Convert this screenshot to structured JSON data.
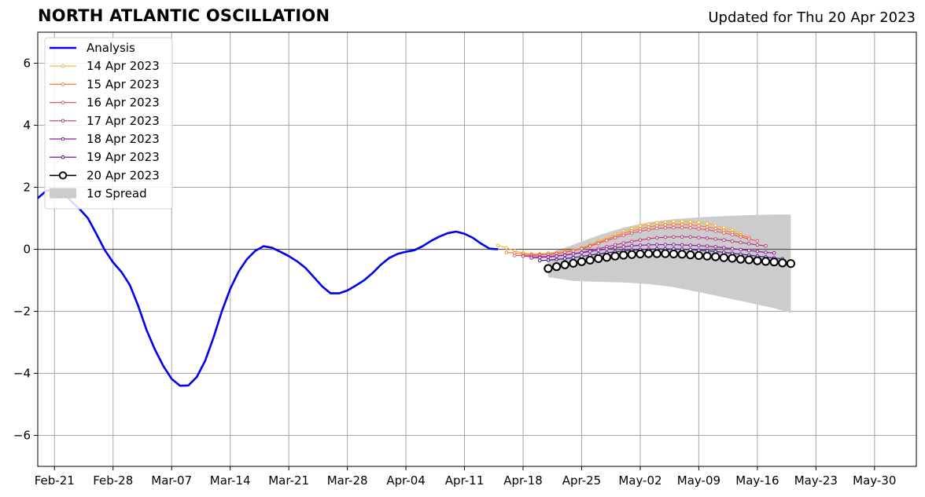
{
  "title": "NORTH ATLANTIC OSCILLATION",
  "subtitle": "Updated for Thu 20 Apr 2023",
  "chart_data": {
    "type": "line",
    "x_unit": "date",
    "xlim": [
      "2023-02-19",
      "2023-06-04"
    ],
    "ylim": [
      -7,
      7
    ],
    "x_ticks": [
      {
        "date": "2023-02-21",
        "label": "Feb-21"
      },
      {
        "date": "2023-02-28",
        "label": "Feb-28"
      },
      {
        "date": "2023-03-07",
        "label": "Mar-07"
      },
      {
        "date": "2023-03-14",
        "label": "Mar-14"
      },
      {
        "date": "2023-03-21",
        "label": "Mar-21"
      },
      {
        "date": "2023-03-28",
        "label": "Mar-28"
      },
      {
        "date": "2023-04-04",
        "label": "Apr-04"
      },
      {
        "date": "2023-04-11",
        "label": "Apr-11"
      },
      {
        "date": "2023-04-18",
        "label": "Apr-18"
      },
      {
        "date": "2023-04-25",
        "label": "Apr-25"
      },
      {
        "date": "2023-05-02",
        "label": "May-02"
      },
      {
        "date": "2023-05-09",
        "label": "May-09"
      },
      {
        "date": "2023-05-16",
        "label": "May-16"
      },
      {
        "date": "2023-05-23",
        "label": "May-23"
      },
      {
        "date": "2023-05-30",
        "label": "May-30"
      }
    ],
    "y_ticks": [
      {
        "value": 6,
        "label": "6"
      },
      {
        "value": 4,
        "label": "4"
      },
      {
        "value": 2,
        "label": "2"
      },
      {
        "value": 0,
        "label": "0"
      },
      {
        "value": -2,
        "label": "−2"
      },
      {
        "value": -4,
        "label": "−4"
      },
      {
        "value": -6,
        "label": "−6"
      }
    ],
    "grid": true,
    "legend_position": "top-left",
    "analysis": {
      "name": "Analysis",
      "color": "#0000ee",
      "x": [
        "2023-02-19",
        "2023-02-20",
        "2023-02-21",
        "2023-02-22",
        "2023-02-23",
        "2023-02-24",
        "2023-02-25",
        "2023-02-26",
        "2023-02-27",
        "2023-02-28",
        "2023-03-01",
        "2023-03-02",
        "2023-03-03",
        "2023-03-04",
        "2023-03-05",
        "2023-03-06",
        "2023-03-07",
        "2023-03-08",
        "2023-03-09",
        "2023-03-10",
        "2023-03-11",
        "2023-03-12",
        "2023-03-13",
        "2023-03-14",
        "2023-03-15",
        "2023-03-16",
        "2023-03-17",
        "2023-03-18",
        "2023-03-19",
        "2023-03-20",
        "2023-03-21",
        "2023-03-22",
        "2023-03-23",
        "2023-03-24",
        "2023-03-25",
        "2023-03-26",
        "2023-03-27",
        "2023-03-28",
        "2023-03-29",
        "2023-03-30",
        "2023-03-31",
        "2023-04-01",
        "2023-04-02",
        "2023-04-03",
        "2023-04-04",
        "2023-04-05",
        "2023-04-06",
        "2023-04-07",
        "2023-04-08",
        "2023-04-09",
        "2023-04-10",
        "2023-04-11",
        "2023-04-12",
        "2023-04-13",
        "2023-04-14",
        "2023-04-15"
      ],
      "y": [
        1.65,
        1.88,
        1.95,
        1.85,
        1.55,
        1.3,
        1.0,
        0.5,
        -0.02,
        -0.42,
        -0.73,
        -1.15,
        -1.82,
        -2.6,
        -3.23,
        -3.76,
        -4.18,
        -4.4,
        -4.39,
        -4.12,
        -3.6,
        -2.85,
        -2.0,
        -1.28,
        -0.72,
        -0.32,
        -0.05,
        0.1,
        0.05,
        -0.08,
        -0.22,
        -0.39,
        -0.6,
        -0.9,
        -1.2,
        -1.42,
        -1.42,
        -1.33,
        -1.17,
        -1.0,
        -0.77,
        -0.5,
        -0.28,
        -0.15,
        -0.08,
        -0.03,
        0.1,
        0.27,
        0.41,
        0.52,
        0.57,
        0.5,
        0.37,
        0.18,
        0.02,
        0.0
      ]
    },
    "forecasts": [
      {
        "name": "14 Apr 2023",
        "color": "#f5b53a",
        "x": [
          "2023-04-15",
          "2023-04-16",
          "2023-04-17",
          "2023-04-18",
          "2023-04-19",
          "2023-04-20",
          "2023-04-21",
          "2023-04-22",
          "2023-04-23",
          "2023-04-24",
          "2023-04-25",
          "2023-04-26",
          "2023-04-27",
          "2023-04-28",
          "2023-04-29",
          "2023-04-30",
          "2023-05-01",
          "2023-05-02",
          "2023-05-03",
          "2023-05-04",
          "2023-05-05",
          "2023-05-06",
          "2023-05-07",
          "2023-05-08",
          "2023-05-09",
          "2023-05-10",
          "2023-05-11",
          "2023-05-12",
          "2023-05-13",
          "2023-05-14"
        ],
        "y": [
          0.12,
          0.05,
          -0.05,
          -0.12,
          -0.15,
          -0.14,
          -0.12,
          -0.1,
          -0.06,
          -0.02,
          0.05,
          0.15,
          0.26,
          0.37,
          0.48,
          0.58,
          0.67,
          0.75,
          0.81,
          0.85,
          0.88,
          0.9,
          0.9,
          0.89,
          0.87,
          0.83,
          0.77,
          0.7,
          0.62,
          0.52
        ]
      },
      {
        "name": "15 Apr 2023",
        "color": "#f07f3e",
        "x": [
          "2023-04-16",
          "2023-04-17",
          "2023-04-18",
          "2023-04-19",
          "2023-04-20",
          "2023-04-21",
          "2023-04-22",
          "2023-04-23",
          "2023-04-24",
          "2023-04-25",
          "2023-04-26",
          "2023-04-27",
          "2023-04-28",
          "2023-04-29",
          "2023-04-30",
          "2023-05-01",
          "2023-05-02",
          "2023-05-03",
          "2023-05-04",
          "2023-05-05",
          "2023-05-06",
          "2023-05-07",
          "2023-05-08",
          "2023-05-09",
          "2023-05-10",
          "2023-05-11",
          "2023-05-12",
          "2023-05-13",
          "2023-05-14",
          "2023-05-15"
        ],
        "y": [
          -0.1,
          -0.12,
          -0.15,
          -0.17,
          -0.17,
          -0.16,
          -0.13,
          -0.09,
          -0.04,
          0.03,
          0.12,
          0.22,
          0.32,
          0.42,
          0.51,
          0.59,
          0.66,
          0.72,
          0.76,
          0.79,
          0.8,
          0.8,
          0.79,
          0.76,
          0.72,
          0.67,
          0.61,
          0.54,
          0.46,
          0.38
        ]
      },
      {
        "name": "16 Apr 2023",
        "color": "#de5a6e",
        "x": [
          "2023-04-17",
          "2023-04-18",
          "2023-04-19",
          "2023-04-20",
          "2023-04-21",
          "2023-04-22",
          "2023-04-23",
          "2023-04-24",
          "2023-04-25",
          "2023-04-26",
          "2023-04-27",
          "2023-04-28",
          "2023-04-29",
          "2023-04-30",
          "2023-05-01",
          "2023-05-02",
          "2023-05-03",
          "2023-05-04",
          "2023-05-05",
          "2023-05-06",
          "2023-05-07",
          "2023-05-08",
          "2023-05-09",
          "2023-05-10",
          "2023-05-11",
          "2023-05-12",
          "2023-05-13",
          "2023-05-14",
          "2023-05-15",
          "2023-05-16"
        ],
        "y": [
          -0.2,
          -0.2,
          -0.2,
          -0.19,
          -0.17,
          -0.14,
          -0.1,
          -0.05,
          0.02,
          0.1,
          0.19,
          0.28,
          0.37,
          0.45,
          0.52,
          0.58,
          0.63,
          0.67,
          0.69,
          0.7,
          0.7,
          0.69,
          0.66,
          0.63,
          0.58,
          0.53,
          0.47,
          0.4,
          0.33,
          0.27
        ]
      },
      {
        "name": "17 Apr 2023",
        "color": "#b9378a",
        "x": [
          "2023-04-18",
          "2023-04-19",
          "2023-04-20",
          "2023-04-21",
          "2023-04-22",
          "2023-04-23",
          "2023-04-24",
          "2023-04-25",
          "2023-04-26",
          "2023-04-27",
          "2023-04-28",
          "2023-04-29",
          "2023-04-30",
          "2023-05-01",
          "2023-05-02",
          "2023-05-03",
          "2023-05-04",
          "2023-05-05",
          "2023-05-06",
          "2023-05-07",
          "2023-05-08",
          "2023-05-09",
          "2023-05-10",
          "2023-05-11",
          "2023-05-12",
          "2023-05-13",
          "2023-05-14",
          "2023-05-15",
          "2023-05-16",
          "2023-05-17"
        ],
        "y": [
          -0.22,
          -0.24,
          -0.24,
          -0.23,
          -0.21,
          -0.18,
          -0.14,
          -0.1,
          -0.04,
          0.02,
          0.08,
          0.14,
          0.2,
          0.25,
          0.3,
          0.34,
          0.37,
          0.39,
          0.4,
          0.4,
          0.4,
          0.38,
          0.36,
          0.33,
          0.3,
          0.26,
          0.22,
          0.18,
          0.14,
          0.11
        ]
      },
      {
        "name": "18 Apr 2023",
        "color": "#8a1fa0",
        "x": [
          "2023-04-19",
          "2023-04-20",
          "2023-04-21",
          "2023-04-22",
          "2023-04-23",
          "2023-04-24",
          "2023-04-25",
          "2023-04-26",
          "2023-04-27",
          "2023-04-28",
          "2023-04-29",
          "2023-04-30",
          "2023-05-01",
          "2023-05-02",
          "2023-05-03",
          "2023-05-04",
          "2023-05-05",
          "2023-05-06",
          "2023-05-07",
          "2023-05-08",
          "2023-05-09",
          "2023-05-10",
          "2023-05-11",
          "2023-05-12",
          "2023-05-13",
          "2023-05-14",
          "2023-05-15",
          "2023-05-16",
          "2023-05-17",
          "2023-05-18"
        ],
        "y": [
          -0.28,
          -0.27,
          -0.25,
          -0.22,
          -0.19,
          -0.15,
          -0.11,
          -0.07,
          -0.03,
          0.01,
          0.05,
          0.08,
          0.11,
          0.13,
          0.14,
          0.15,
          0.15,
          0.15,
          0.14,
          0.13,
          0.12,
          0.1,
          0.08,
          0.05,
          0.02,
          -0.01,
          -0.04,
          -0.07,
          -0.1,
          -0.12
        ]
      },
      {
        "name": "19 Apr 2023",
        "color": "#4b0f8c",
        "x": [
          "2023-04-20",
          "2023-04-21",
          "2023-04-22",
          "2023-04-23",
          "2023-04-24",
          "2023-04-25",
          "2023-04-26",
          "2023-04-27",
          "2023-04-28",
          "2023-04-29",
          "2023-04-30",
          "2023-05-01",
          "2023-05-02",
          "2023-05-03",
          "2023-05-04",
          "2023-05-05",
          "2023-05-06",
          "2023-05-07",
          "2023-05-08",
          "2023-05-09",
          "2023-05-10",
          "2023-05-11",
          "2023-05-12",
          "2023-05-13",
          "2023-05-14",
          "2023-05-15",
          "2023-05-16",
          "2023-05-17",
          "2023-05-18",
          "2023-05-19"
        ],
        "y": [
          -0.36,
          -0.35,
          -0.33,
          -0.3,
          -0.27,
          -0.23,
          -0.19,
          -0.15,
          -0.11,
          -0.08,
          -0.05,
          -0.03,
          -0.01,
          0.0,
          0.01,
          0.01,
          0.01,
          0.0,
          -0.01,
          -0.03,
          -0.05,
          -0.07,
          -0.1,
          -0.13,
          -0.16,
          -0.19,
          -0.22,
          -0.25,
          -0.28,
          -0.31
        ]
      },
      {
        "name": "20 Apr 2023",
        "color": "#000000",
        "x": [
          "2023-04-21",
          "2023-04-22",
          "2023-04-23",
          "2023-04-24",
          "2023-04-25",
          "2023-04-26",
          "2023-04-27",
          "2023-04-28",
          "2023-04-29",
          "2023-04-30",
          "2023-05-01",
          "2023-05-02",
          "2023-05-03",
          "2023-05-04",
          "2023-05-05",
          "2023-05-06",
          "2023-05-07",
          "2023-05-08",
          "2023-05-09",
          "2023-05-10",
          "2023-05-11",
          "2023-05-12",
          "2023-05-13",
          "2023-05-14",
          "2023-05-15",
          "2023-05-16",
          "2023-05-17",
          "2023-05-18",
          "2023-05-19",
          "2023-05-20"
        ],
        "y": [
          -0.62,
          -0.56,
          -0.5,
          -0.45,
          -0.4,
          -0.35,
          -0.3,
          -0.26,
          -0.22,
          -0.19,
          -0.17,
          -0.15,
          -0.14,
          -0.14,
          -0.14,
          -0.15,
          -0.16,
          -0.18,
          -0.2,
          -0.22,
          -0.24,
          -0.27,
          -0.29,
          -0.32,
          -0.34,
          -0.37,
          -0.39,
          -0.41,
          -0.44,
          -0.46
        ]
      }
    ],
    "spread": {
      "name": "1σ Spread",
      "color": "#cccccc",
      "x": [
        "2023-04-21",
        "2023-04-24",
        "2023-04-27",
        "2023-04-30",
        "2023-05-03",
        "2023-05-06",
        "2023-05-09",
        "2023-05-12",
        "2023-05-15",
        "2023-05-18",
        "2023-05-20"
      ],
      "upper": [
        -0.15,
        0.15,
        0.45,
        0.7,
        0.87,
        0.97,
        1.03,
        1.07,
        1.1,
        1.12,
        1.12
      ],
      "lower": [
        -0.9,
        -1.02,
        -1.05,
        -1.07,
        -1.12,
        -1.22,
        -1.38,
        -1.55,
        -1.72,
        -1.9,
        -2.05
      ]
    }
  }
}
